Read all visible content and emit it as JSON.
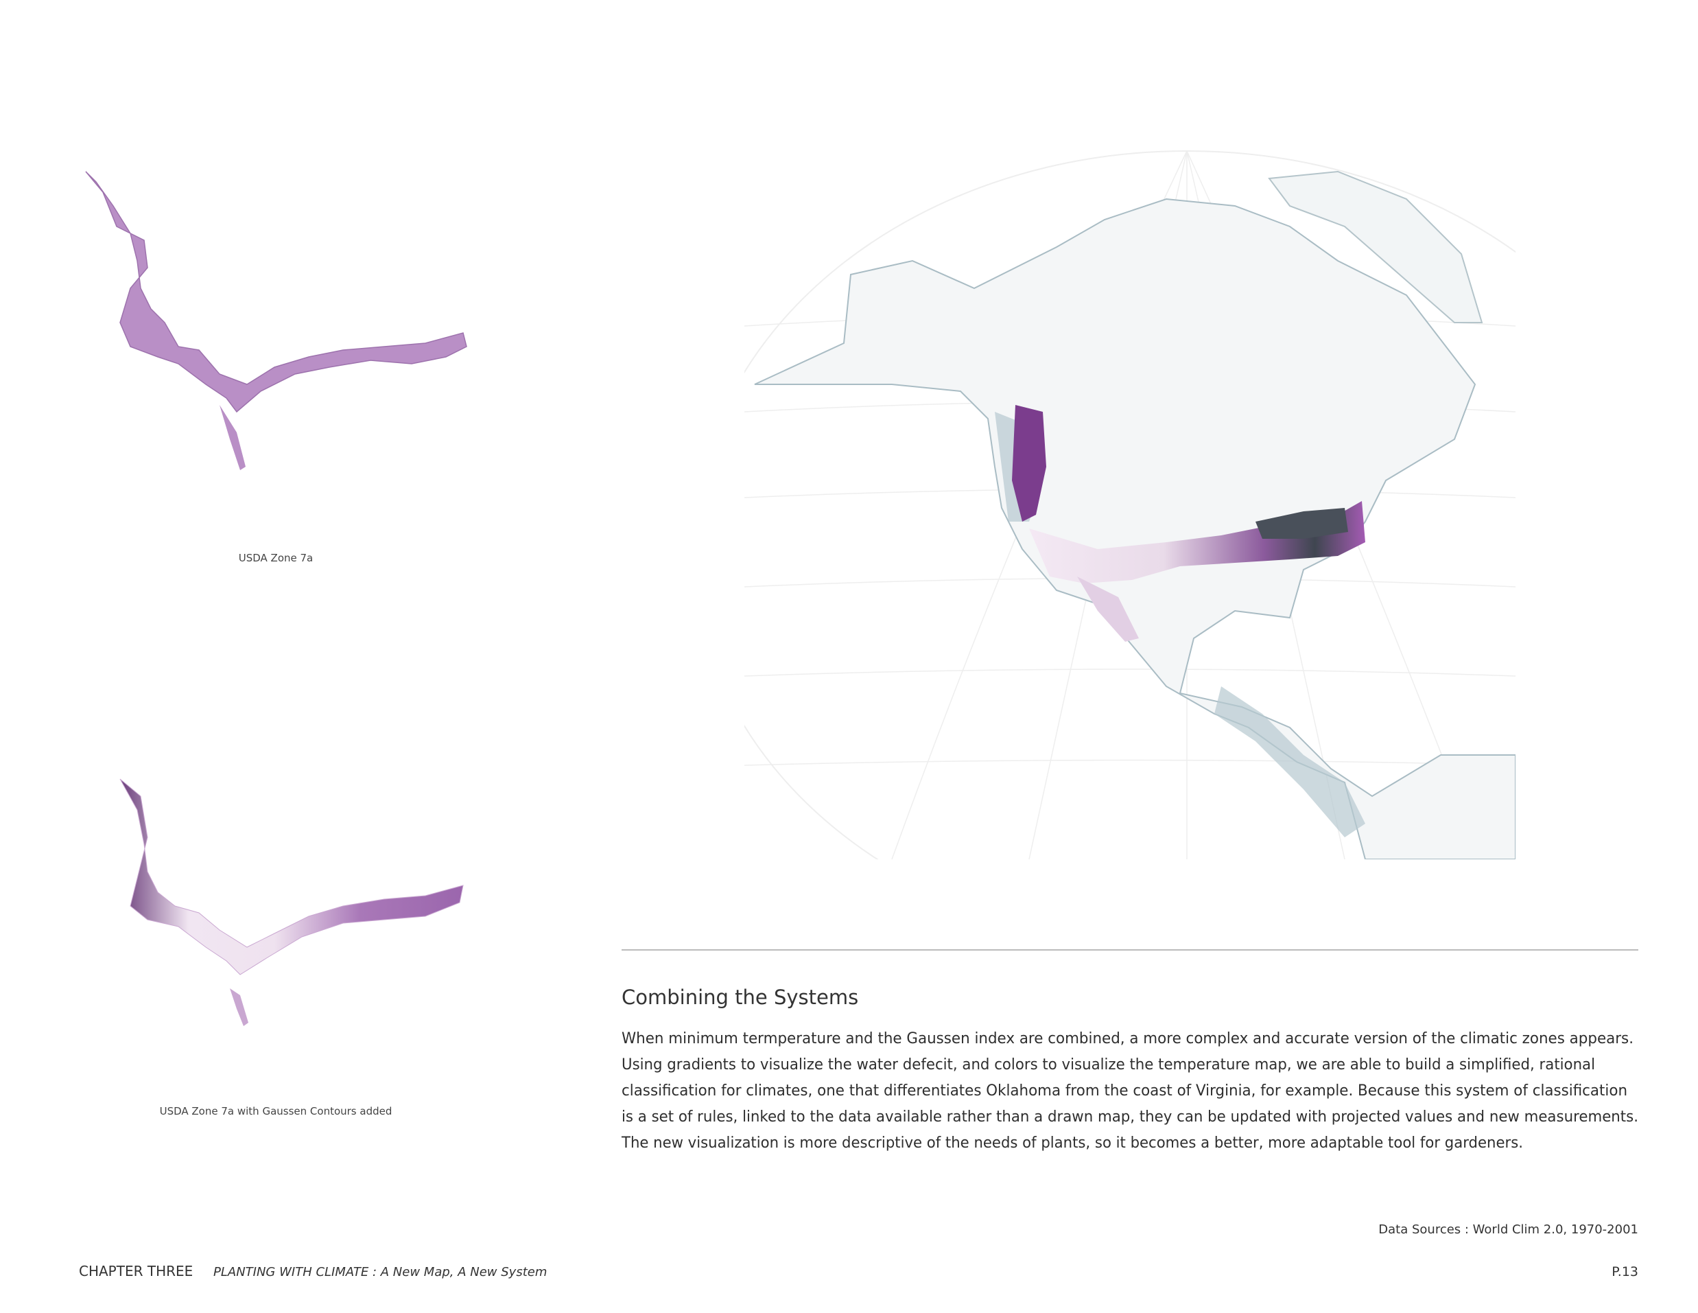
{
  "maps": {
    "top_caption": "USDA Zone 7a",
    "bottom_caption": "USDA Zone 7a with Gaussen Contours added"
  },
  "section": {
    "heading": "Combining the Systems",
    "paragraph_lines": [
      "When minimum termperature and the Gaussen index are combined, a more complex and accurate version of the climatic zones appears.",
      "Using gradients to visualize the water defecit, and colors to visualize the temperature map, we are able to build a simplified, rational",
      "classification for climates, one that differentiates Oklahoma from the coast of Virginia, for example. Because this system of classification",
      "is a set of rules, linked to the data available rather than a drawn map, they can be updated with projected values and new measurements.",
      "The new visualization is more descriptive of the needs of plants, so it becomes a better, more adaptable tool for gardeners."
    ],
    "data_sources": "Data Sources : World Clim 2.0, 1970-2001"
  },
  "footer": {
    "chapter": "CHAPTER THREE",
    "title": "PLANTING WITH CLIMATE : A New Map, A New System",
    "page": "P.13"
  }
}
